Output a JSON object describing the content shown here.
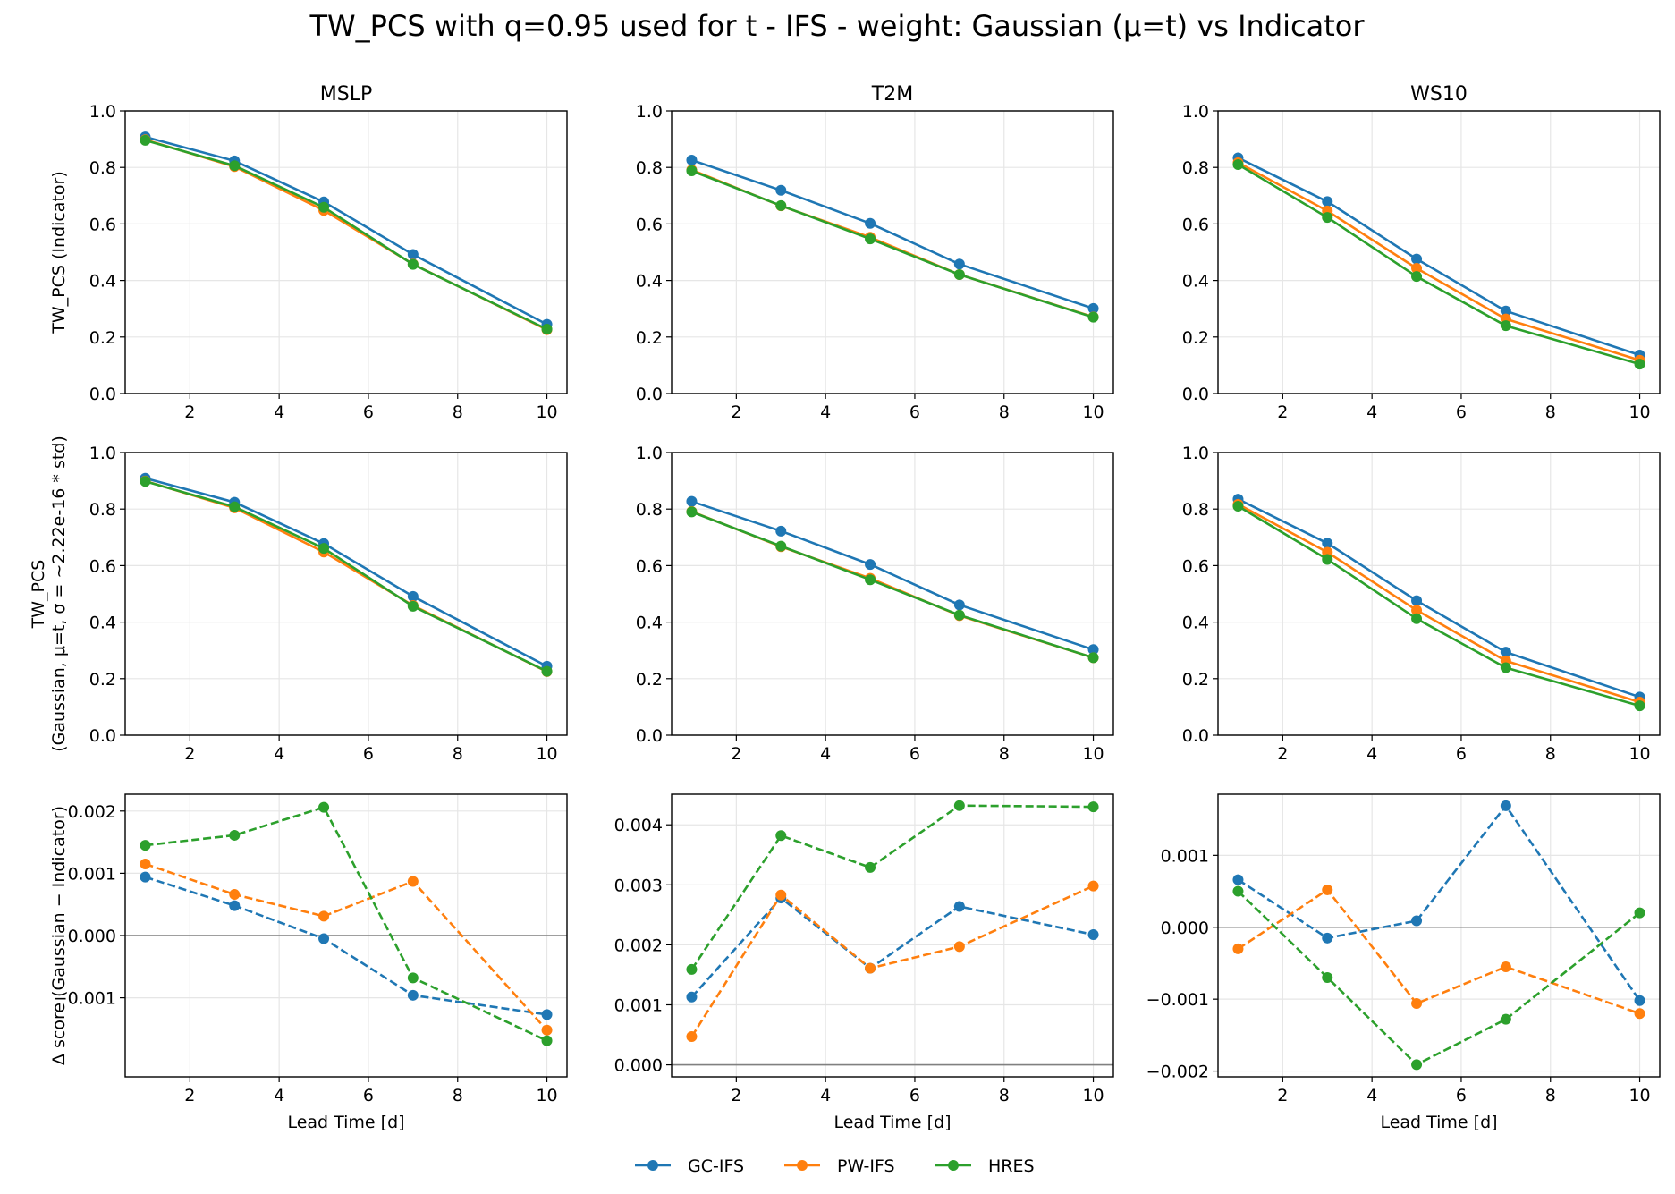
{
  "title": "TW_PCS with q=0.95 used for t - IFS - weight: Gaussian (μ=t) vs Indicator",
  "legend": {
    "placement": "bottom-center",
    "entries": [
      {
        "name": "GC-IFS",
        "color": "#1f77b4"
      },
      {
        "name": "PW-IFS",
        "color": "#ff7f0e"
      },
      {
        "name": "HRES",
        "color": "#2ca02c"
      }
    ]
  },
  "columns": [
    "MSLP",
    "T2M",
    "WS10"
  ],
  "row_labels": [
    [
      "TW_PCS (Indicator)"
    ],
    [
      "TW_PCS",
      "(Gaussian, μ=t, σ = ~2.22e-16 * std)"
    ],
    [
      "Δ score (Gaussian − Indicator)"
    ]
  ],
  "xlabel": "Lead Time [d]",
  "chart_data": [
    {
      "type": "line",
      "row": 0,
      "col": 0,
      "title": "MSLP",
      "xlabel": "",
      "ylabel": "TW_PCS (Indicator)",
      "xlim": [
        0.55,
        10.45
      ],
      "ylim": [
        0,
        1
      ],
      "xticks": [
        2,
        4,
        6,
        8,
        10
      ],
      "yticks": [
        0,
        0.2,
        0.4,
        0.6,
        0.8,
        1.0
      ],
      "yticklabels": [
        "0.0",
        "0.2",
        "0.4",
        "0.6",
        "0.8",
        "1.0"
      ],
      "grid": true,
      "dashed": false,
      "zero_line": false,
      "x": [
        1,
        3,
        5,
        7,
        10
      ],
      "series": [
        {
          "name": "GC-IFS",
          "color": "#1f77b4",
          "values": [
            0.908,
            0.823,
            0.678,
            0.492,
            0.245
          ]
        },
        {
          "name": "PW-IFS",
          "color": "#ff7f0e",
          "values": [
            0.898,
            0.803,
            0.648,
            0.458,
            0.226
          ]
        },
        {
          "name": "HRES",
          "color": "#2ca02c",
          "values": [
            0.896,
            0.806,
            0.659,
            0.457,
            0.228
          ]
        }
      ]
    },
    {
      "type": "line",
      "row": 0,
      "col": 1,
      "title": "T2M",
      "xlabel": "",
      "ylabel": "",
      "xlim": [
        0.55,
        10.45
      ],
      "ylim": [
        0,
        1
      ],
      "xticks": [
        2,
        4,
        6,
        8,
        10
      ],
      "yticks": [
        0,
        0.2,
        0.4,
        0.6,
        0.8,
        1.0
      ],
      "yticklabels": [
        "0.0",
        "0.2",
        "0.4",
        "0.6",
        "0.8",
        "1.0"
      ],
      "grid": true,
      "dashed": false,
      "zero_line": false,
      "x": [
        1,
        3,
        5,
        7,
        10
      ],
      "series": [
        {
          "name": "GC-IFS",
          "color": "#1f77b4",
          "values": [
            0.826,
            0.719,
            0.602,
            0.458,
            0.301
          ]
        },
        {
          "name": "PW-IFS",
          "color": "#ff7f0e",
          "values": [
            0.791,
            0.664,
            0.553,
            0.421,
            0.271
          ]
        },
        {
          "name": "HRES",
          "color": "#2ca02c",
          "values": [
            0.788,
            0.665,
            0.547,
            0.421,
            0.27
          ]
        }
      ]
    },
    {
      "type": "line",
      "row": 0,
      "col": 2,
      "title": "WS10",
      "xlabel": "",
      "ylabel": "",
      "xlim": [
        0.55,
        10.45
      ],
      "ylim": [
        0,
        1
      ],
      "xticks": [
        2,
        4,
        6,
        8,
        10
      ],
      "yticks": [
        0,
        0.2,
        0.4,
        0.6,
        0.8,
        1.0
      ],
      "yticklabels": [
        "0.0",
        "0.2",
        "0.4",
        "0.6",
        "0.8",
        "1.0"
      ],
      "grid": true,
      "dashed": false,
      "zero_line": false,
      "x": [
        1,
        3,
        5,
        7,
        10
      ],
      "series": [
        {
          "name": "GC-IFS",
          "color": "#1f77b4",
          "values": [
            0.834,
            0.679,
            0.476,
            0.292,
            0.136
          ]
        },
        {
          "name": "PW-IFS",
          "color": "#ff7f0e",
          "values": [
            0.817,
            0.646,
            0.443,
            0.264,
            0.118
          ]
        },
        {
          "name": "HRES",
          "color": "#2ca02c",
          "values": [
            0.81,
            0.623,
            0.414,
            0.24,
            0.104
          ]
        }
      ]
    },
    {
      "type": "line",
      "row": 1,
      "col": 0,
      "title": "",
      "xlabel": "",
      "ylabel": "TW_PCS\n(Gaussian, μ=t, σ = ~2.22e-16 * std)",
      "xlim": [
        0.55,
        10.45
      ],
      "ylim": [
        0,
        1
      ],
      "xticks": [
        2,
        4,
        6,
        8,
        10
      ],
      "yticks": [
        0,
        0.2,
        0.4,
        0.6,
        0.8,
        1.0
      ],
      "yticklabels": [
        "0.0",
        "0.2",
        "0.4",
        "0.6",
        "0.8",
        "1.0"
      ],
      "grid": true,
      "dashed": false,
      "zero_line": false,
      "x": [
        1,
        3,
        5,
        7,
        10
      ],
      "series": [
        {
          "name": "GC-IFS",
          "color": "#1f77b4",
          "values": [
            0.909,
            0.824,
            0.678,
            0.491,
            0.244
          ]
        },
        {
          "name": "PW-IFS",
          "color": "#ff7f0e",
          "values": [
            0.899,
            0.804,
            0.648,
            0.459,
            0.225
          ]
        },
        {
          "name": "HRES",
          "color": "#2ca02c",
          "values": [
            0.898,
            0.808,
            0.661,
            0.456,
            0.226
          ]
        }
      ]
    },
    {
      "type": "line",
      "row": 1,
      "col": 1,
      "title": "",
      "xlabel": "",
      "ylabel": "",
      "xlim": [
        0.55,
        10.45
      ],
      "ylim": [
        0,
        1
      ],
      "xticks": [
        2,
        4,
        6,
        8,
        10
      ],
      "yticks": [
        0,
        0.2,
        0.4,
        0.6,
        0.8,
        1.0
      ],
      "yticklabels": [
        "0.0",
        "0.2",
        "0.4",
        "0.6",
        "0.8",
        "1.0"
      ],
      "grid": true,
      "dashed": false,
      "zero_line": false,
      "x": [
        1,
        3,
        5,
        7,
        10
      ],
      "series": [
        {
          "name": "GC-IFS",
          "color": "#1f77b4",
          "values": [
            0.827,
            0.722,
            0.604,
            0.461,
            0.303
          ]
        },
        {
          "name": "PW-IFS",
          "color": "#ff7f0e",
          "values": [
            0.791,
            0.667,
            0.555,
            0.423,
            0.274
          ]
        },
        {
          "name": "HRES",
          "color": "#2ca02c",
          "values": [
            0.79,
            0.669,
            0.55,
            0.425,
            0.274
          ]
        }
      ]
    },
    {
      "type": "line",
      "row": 1,
      "col": 2,
      "title": "",
      "xlabel": "",
      "ylabel": "",
      "xlim": [
        0.55,
        10.45
      ],
      "ylim": [
        0,
        1
      ],
      "xticks": [
        2,
        4,
        6,
        8,
        10
      ],
      "yticks": [
        0,
        0.2,
        0.4,
        0.6,
        0.8,
        1.0
      ],
      "yticklabels": [
        "0.0",
        "0.2",
        "0.4",
        "0.6",
        "0.8",
        "1.0"
      ],
      "grid": true,
      "dashed": false,
      "zero_line": false,
      "x": [
        1,
        3,
        5,
        7,
        10
      ],
      "series": [
        {
          "name": "GC-IFS",
          "color": "#1f77b4",
          "values": [
            0.835,
            0.679,
            0.476,
            0.294,
            0.135
          ]
        },
        {
          "name": "PW-IFS",
          "color": "#ff7f0e",
          "values": [
            0.817,
            0.647,
            0.442,
            0.263,
            0.117
          ]
        },
        {
          "name": "HRES",
          "color": "#2ca02c",
          "values": [
            0.81,
            0.622,
            0.412,
            0.239,
            0.104
          ]
        }
      ]
    },
    {
      "type": "line",
      "row": 2,
      "col": 0,
      "title": "",
      "xlabel": "Lead Time [d]",
      "ylabel": "Δ score (Gaussian − Indicator)",
      "xlim": [
        0.55,
        10.45
      ],
      "ylim": [
        -0.00227,
        0.00227
      ],
      "xticks": [
        2,
        4,
        6,
        8,
        10
      ],
      "yticks": [
        -0.001,
        0,
        0.001,
        0.002
      ],
      "yticklabels": [
        "−0.001",
        "0.000",
        "0.001",
        "0.002"
      ],
      "grid": true,
      "dashed": true,
      "zero_line": true,
      "x": [
        1,
        3,
        5,
        7,
        10
      ],
      "series": [
        {
          "name": "GC-IFS",
          "color": "#1f77b4",
          "values": [
            0.00094,
            0.00048,
            -5e-05,
            -0.00096,
            -0.00127
          ]
        },
        {
          "name": "PW-IFS",
          "color": "#ff7f0e",
          "values": [
            0.00115,
            0.00066,
            0.00031,
            0.00087,
            -0.00152
          ]
        },
        {
          "name": "HRES",
          "color": "#2ca02c",
          "values": [
            0.00145,
            0.00161,
            0.00206,
            -0.00068,
            -0.00169
          ]
        }
      ]
    },
    {
      "type": "line",
      "row": 2,
      "col": 1,
      "title": "",
      "xlabel": "Lead Time [d]",
      "ylabel": "",
      "xlim": [
        0.55,
        10.45
      ],
      "ylim": [
        -0.0002,
        0.00451
      ],
      "xticks": [
        2,
        4,
        6,
        8,
        10
      ],
      "yticks": [
        0,
        0.001,
        0.002,
        0.003,
        0.004
      ],
      "yticklabels": [
        "0.000",
        "0.001",
        "0.002",
        "0.003",
        "0.004"
      ],
      "grid": true,
      "dashed": true,
      "zero_line": true,
      "x": [
        1,
        3,
        5,
        7,
        10
      ],
      "series": [
        {
          "name": "GC-IFS",
          "color": "#1f77b4",
          "values": [
            0.00113,
            0.00278,
            0.00161,
            0.00264,
            0.00217
          ]
        },
        {
          "name": "PW-IFS",
          "color": "#ff7f0e",
          "values": [
            0.00047,
            0.00283,
            0.00161,
            0.00197,
            0.00298
          ]
        },
        {
          "name": "HRES",
          "color": "#2ca02c",
          "values": [
            0.00159,
            0.00382,
            0.00329,
            0.00432,
            0.0043
          ]
        }
      ]
    },
    {
      "type": "line",
      "row": 2,
      "col": 2,
      "title": "",
      "xlabel": "Lead Time [d]",
      "ylabel": "",
      "xlim": [
        0.55,
        10.45
      ],
      "ylim": [
        -0.00208,
        0.00185
      ],
      "xticks": [
        2,
        4,
        6,
        8,
        10
      ],
      "yticks": [
        -0.002,
        -0.001,
        0,
        0.001
      ],
      "yticklabels": [
        "−0.002",
        "−0.001",
        "0.000",
        "0.001"
      ],
      "grid": true,
      "dashed": true,
      "zero_line": true,
      "x": [
        1,
        3,
        5,
        7,
        10
      ],
      "series": [
        {
          "name": "GC-IFS",
          "color": "#1f77b4",
          "values": [
            0.00066,
            -0.00015,
            9e-05,
            0.00169,
            -0.00102
          ]
        },
        {
          "name": "PW-IFS",
          "color": "#ff7f0e",
          "values": [
            -0.0003,
            0.00052,
            -0.00106,
            -0.00055,
            -0.0012
          ]
        },
        {
          "name": "HRES",
          "color": "#2ca02c",
          "values": [
            0.0005,
            -0.0007,
            -0.00191,
            -0.00128,
            0.0002
          ]
        }
      ]
    }
  ]
}
